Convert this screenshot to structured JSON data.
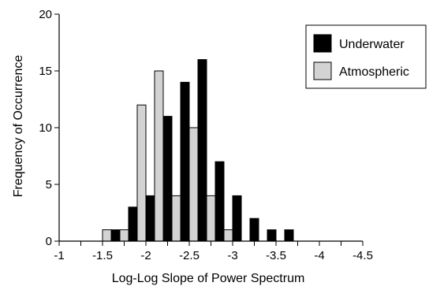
{
  "chart_data": {
    "type": "bar",
    "title": "",
    "xlabel": "Log-Log Slope of Power Spectrum",
    "ylabel": "Frequency of Occurrence",
    "xlim": [
      -1,
      -4.5
    ],
    "ylim": [
      0,
      20
    ],
    "x_ticks": [
      "-1",
      "-1.5",
      "-2",
      "-2.5",
      "-3",
      "-3.5",
      "-4",
      "-4.5"
    ],
    "y_ticks": [
      "0",
      "5",
      "10",
      "15",
      "20"
    ],
    "grid": false,
    "legend_position": "top-right",
    "bin_width": 0.2,
    "series": [
      {
        "name": "Underwater",
        "color": "#000000",
        "x": [
          -1.7,
          -1.9,
          -2.1,
          -2.3,
          -2.5,
          -2.7,
          -2.9,
          -3.1,
          -3.3,
          -3.5,
          -3.7,
          -3.9
        ],
        "values": [
          1,
          3,
          4,
          11,
          14,
          16,
          7,
          4,
          2,
          1,
          1,
          0
        ]
      },
      {
        "name": "Atmospheric",
        "color": "#d3d3d3",
        "x": [
          -1.5,
          -1.7,
          -1.9,
          -2.1,
          -2.3,
          -2.5,
          -2.7,
          -2.9
        ],
        "values": [
          1,
          1,
          12,
          15,
          4,
          10,
          4,
          1
        ]
      }
    ]
  }
}
